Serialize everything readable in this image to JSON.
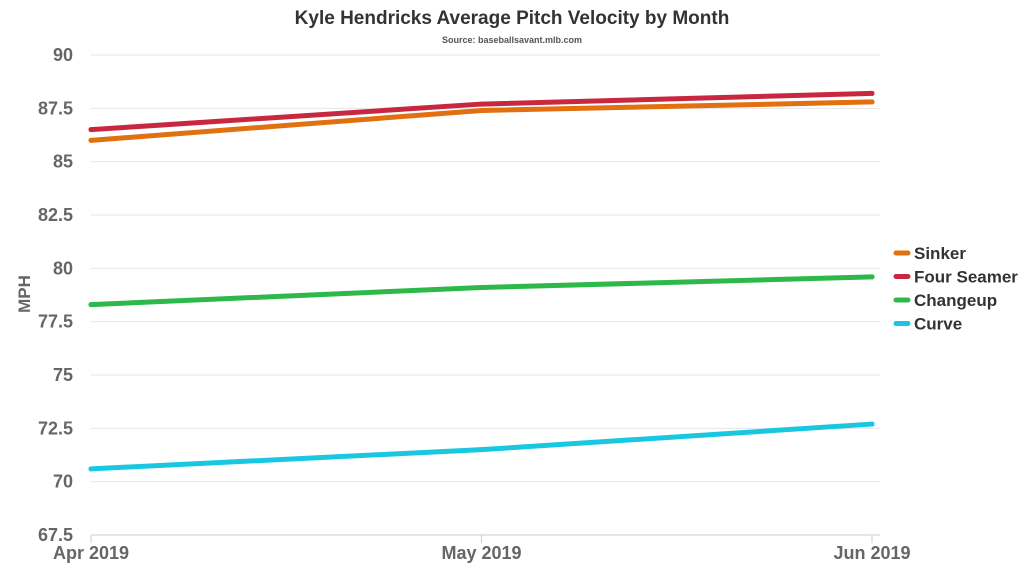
{
  "chart_data": {
    "type": "line",
    "title": "Kyle Hendricks Average Pitch Velocity by Month",
    "subtitle": "Source: baseballsavant.mlb.com",
    "xlabel": "",
    "ylabel": "MPH",
    "categories": [
      "Apr 2019",
      "May 2019",
      "Jun 2019"
    ],
    "ylim": [
      67.5,
      90
    ],
    "yticks": [
      "90",
      "87.5",
      "85",
      "82.5",
      "80",
      "77.5",
      "75",
      "72.5",
      "70",
      "67.5"
    ],
    "grid": true,
    "legend_position": "right",
    "series": [
      {
        "name": "Sinker",
        "color": "#e07010",
        "values": [
          86.0,
          87.4,
          87.8
        ]
      },
      {
        "name": "Four Seamer",
        "color": "#c8283f",
        "values": [
          86.5,
          87.7,
          88.2
        ]
      },
      {
        "name": "Changeup",
        "color": "#2db84a",
        "values": [
          78.3,
          79.1,
          79.6
        ]
      },
      {
        "name": "Curve",
        "color": "#19c8e0",
        "values": [
          70.6,
          71.5,
          72.7
        ]
      }
    ]
  }
}
